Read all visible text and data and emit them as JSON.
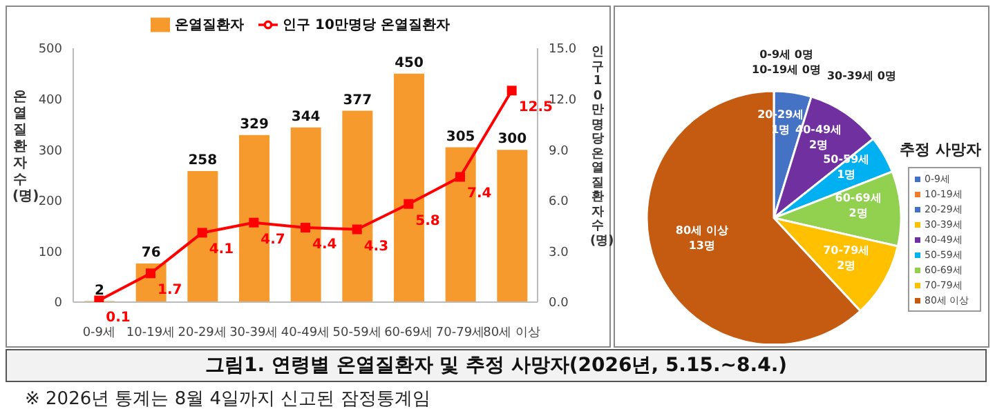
{
  "chart_data": [
    {
      "type": "bar",
      "title": "그림1. 연령별 온열질환자 및 추정 사망자(2026년, 5.15.~8.4.)",
      "ylabel": "온열질환자 수(명)",
      "y2label": "인구 10만명당 온열질환자 수(명)",
      "annotations": [
        "※ 2026년 통계는 8월 4일까지 신고된 잠정통계임"
      ],
      "categories": [
        "0-9세",
        "10-19세",
        "20-29세",
        "30-39세",
        "40-49세",
        "50-59세",
        "60-69세",
        "70-79세",
        "80세 이상"
      ],
      "series": [
        {
          "name": "온열질환자",
          "type": "bar",
          "color": "#f79a2e",
          "values": [
            2,
            76,
            258,
            329,
            344,
            377,
            450,
            305,
            300
          ]
        },
        {
          "name": "인구 10만명당 온열질환자",
          "type": "line",
          "axis": "y2",
          "color": "#ff0000",
          "marker": "square",
          "values": [
            0.1,
            1.7,
            4.1,
            4.7,
            4.4,
            4.3,
            5.8,
            7.4,
            12.5
          ]
        }
      ],
      "ylim": [
        0,
        500
      ],
      "yticks": [
        0,
        100,
        200,
        300,
        400,
        500
      ],
      "y2lim": [
        0,
        15
      ],
      "y2ticks": [
        {
          "value": 0,
          "label": "0.0"
        },
        {
          "value": 3,
          "label": "3.0"
        },
        {
          "value": 6,
          "label": "6.0"
        },
        {
          "value": 9,
          "label": "9.0"
        },
        {
          "value": 12,
          "label": "12.0"
        },
        {
          "value": 15,
          "label": "15.0"
        }
      ],
      "data_labels": true,
      "grid": false,
      "legend": "top"
    },
    {
      "type": "pie",
      "legend_title": "추정 사망자",
      "legend": "right",
      "categories": [
        "0-9세",
        "10-19세",
        "20-29세",
        "30-39세",
        "40-49세",
        "50-59세",
        "60-69세",
        "70-79세",
        "80세 이상"
      ],
      "values": [
        0,
        0,
        1,
        0,
        2,
        1,
        2,
        2,
        13
      ],
      "value_labels": [
        "0명",
        "0명",
        "1명",
        "0명",
        "2명",
        "1명",
        "2명",
        "2명",
        "13명"
      ],
      "colors": [
        "#4472c4",
        "#ed7d31",
        "#4472c4",
        "#ffc000",
        "#7030a0",
        "#00b0f0",
        "#92d050",
        "#ffc000",
        "#c55a11"
      ]
    }
  ]
}
